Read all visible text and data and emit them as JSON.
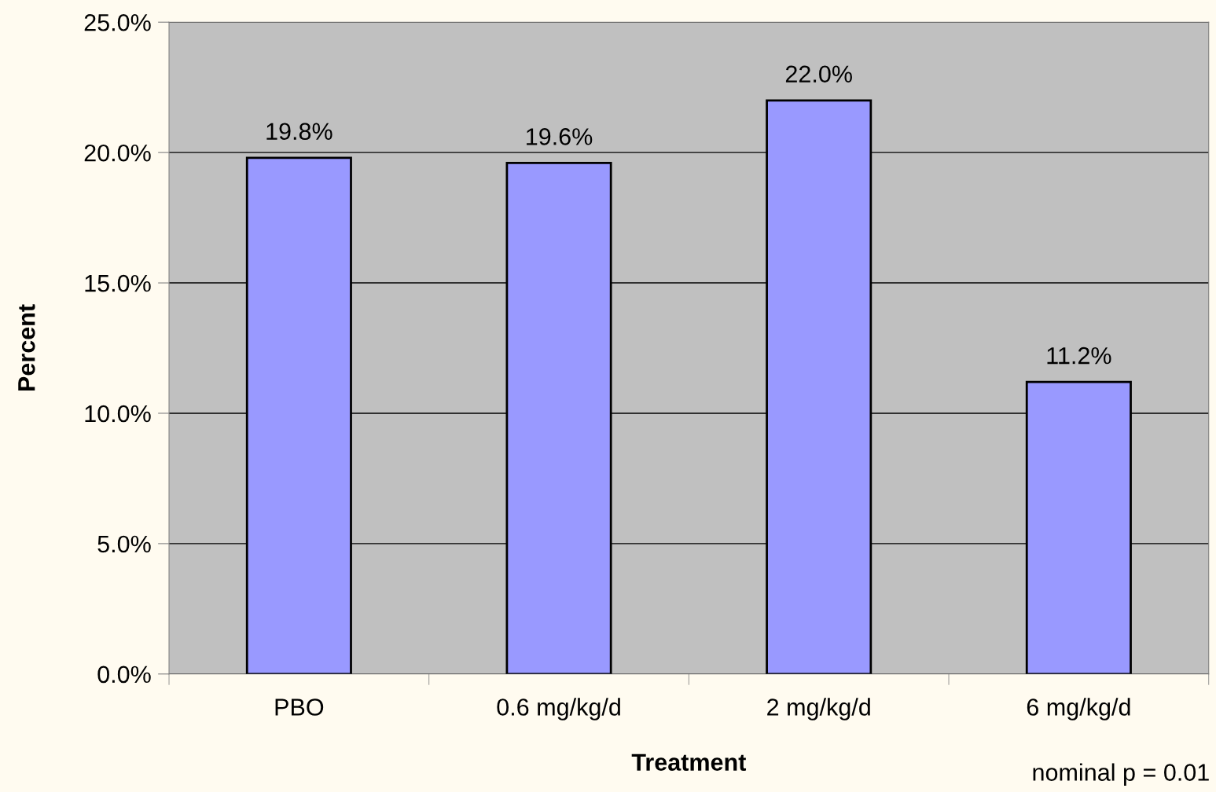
{
  "chart_data": {
    "type": "bar",
    "xlabel": "Treatment",
    "ylabel": "Percent",
    "categories": [
      "PBO",
      "0.6 mg/kg/d",
      "2 mg/kg/d",
      "6 mg/kg/d"
    ],
    "values": [
      19.8,
      19.6,
      22.0,
      11.2
    ],
    "value_labels": [
      "19.8%",
      "19.6%",
      "22.0%",
      "11.2%"
    ],
    "color": "#9999ff",
    "ylim": [
      0,
      25
    ],
    "yticks": [
      {
        "value": 0,
        "label": "0.0%"
      },
      {
        "value": 5,
        "label": "5.0%"
      },
      {
        "value": 10,
        "label": "10.0%"
      },
      {
        "value": 15,
        "label": "15.0%"
      },
      {
        "value": 20,
        "label": "20.0%"
      },
      {
        "value": 25,
        "label": "25.0%"
      }
    ],
    "grid": "y",
    "legend": false,
    "annotations": [
      "nominal p = 0.01"
    ]
  }
}
